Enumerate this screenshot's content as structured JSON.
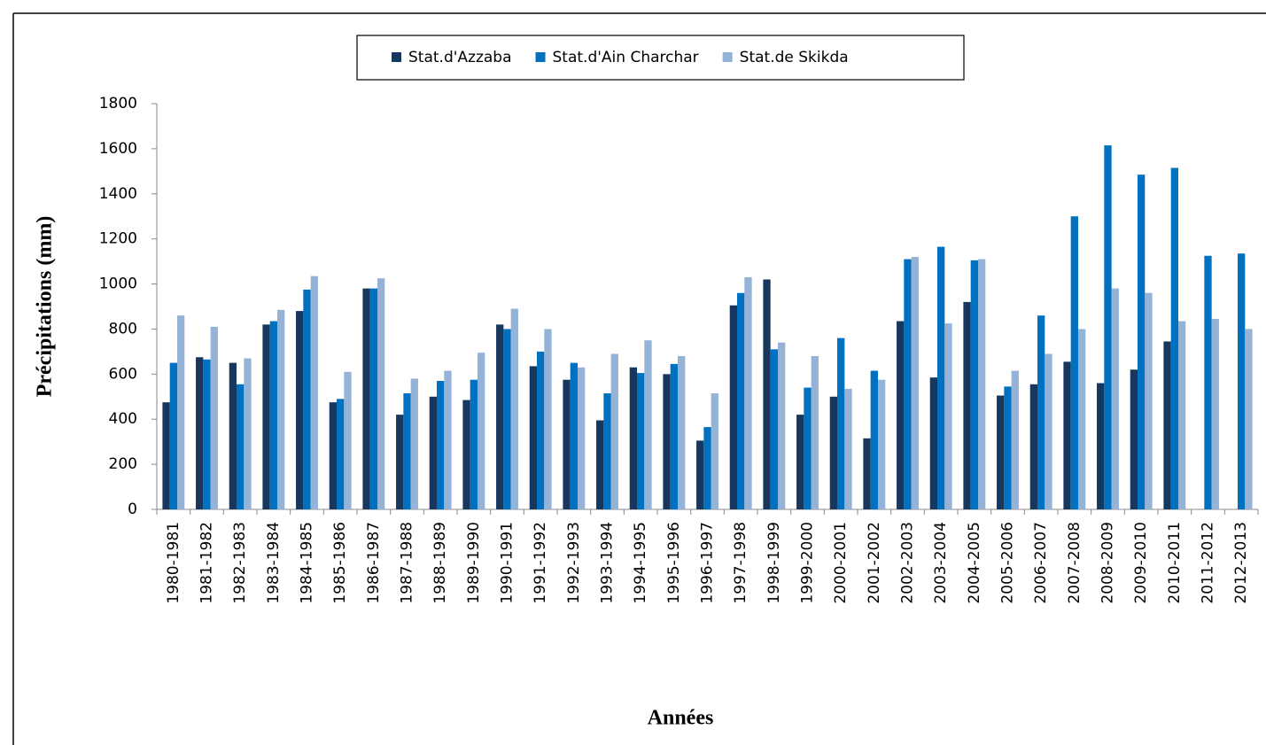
{
  "chart_data": {
    "type": "bar",
    "categories": [
      "1980-1981",
      "1981-1982",
      "1982-1983",
      "1983-1984",
      "1984-1985",
      "1985-1986",
      "1986-1987",
      "1987-1988",
      "1988-1989",
      "1989-1990",
      "1990-1991",
      "1991-1992",
      "1992-1993",
      "1993-1994",
      "1994-1995",
      "1995-1996",
      "1996-1997",
      "1997-1998",
      "1998-1999",
      "1999-2000",
      "2000-2001",
      "2001-2002",
      "2002-2003",
      "2003-2004",
      "2004-2005",
      "2005-2006",
      "2006-2007",
      "2007-2008",
      "2008-2009",
      "2009-2010",
      "2010-2011",
      "2011-2012",
      "2012-2013"
    ],
    "series": [
      {
        "name": "Stat.d'Azzaba",
        "color": "#17375e",
        "values": [
          475,
          675,
          650,
          820,
          880,
          475,
          980,
          420,
          500,
          485,
          820,
          635,
          575,
          395,
          630,
          600,
          305,
          905,
          1020,
          420,
          500,
          315,
          835,
          585,
          920,
          505,
          555,
          655,
          560,
          620,
          745,
          null,
          null
        ]
      },
      {
        "name": "Stat.d'Ain Charchar",
        "color": "#0070c0",
        "values": [
          650,
          665,
          555,
          835,
          975,
          490,
          980,
          515,
          570,
          575,
          800,
          700,
          650,
          515,
          605,
          645,
          365,
          960,
          710,
          540,
          760,
          615,
          1110,
          1165,
          1105,
          545,
          860,
          1300,
          1615,
          1485,
          1515,
          1125,
          1135
        ]
      },
      {
        "name": "Stat.de Skikda",
        "color": "#95b3d7",
        "values": [
          860,
          810,
          670,
          885,
          1035,
          610,
          1025,
          580,
          615,
          695,
          890,
          800,
          630,
          690,
          750,
          680,
          515,
          1030,
          740,
          680,
          535,
          575,
          1120,
          825,
          1110,
          615,
          690,
          800,
          980,
          960,
          835,
          845,
          800
        ]
      }
    ],
    "ylabel": "Précipitations (mm)",
    "xlabel": "Années",
    "ylim": [
      0,
      1800
    ],
    "yticks": [
      0,
      200,
      400,
      600,
      800,
      1000,
      1200,
      1400,
      1600,
      1800
    ],
    "legend": "top"
  }
}
